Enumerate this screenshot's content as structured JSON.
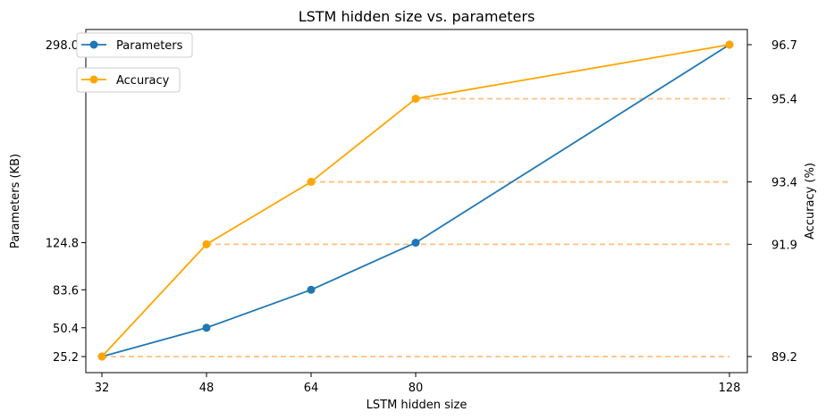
{
  "chart_data": {
    "type": "line",
    "title": "LSTM hidden size vs. parameters",
    "xlabel": "LSTM hidden size",
    "ylabel_left": "Parameters (KB)",
    "ylabel_right": "Accuracy (%)",
    "x": [
      32,
      48,
      64,
      80,
      128
    ],
    "x_ticks": [
      "32",
      "48",
      "64",
      "80",
      "128"
    ],
    "y_left_ticks": [
      "25.2",
      "50.4",
      "83.6",
      "124.8",
      "298.0"
    ],
    "y_right_ticks": [
      "89.2",
      "91.9",
      "93.4",
      "95.4",
      "96.7"
    ],
    "y_left_range": [
      25.2,
      298.0
    ],
    "y_right_range": [
      89.2,
      96.7
    ],
    "legend_placement": "top-left",
    "grid": false,
    "series": [
      {
        "name": "Parameters",
        "axis": "left",
        "color": "#1f77b4",
        "values": [
          25.2,
          50.4,
          83.6,
          124.8,
          298.0
        ]
      },
      {
        "name": "Accuracy",
        "axis": "right",
        "color": "#ffa500",
        "values": [
          89.2,
          91.9,
          93.4,
          95.4,
          96.7
        ]
      }
    ],
    "reference_lines": {
      "color": "#ffbf80",
      "style": "dashed",
      "values": [
        89.2,
        91.9,
        93.4,
        95.4
      ]
    }
  }
}
